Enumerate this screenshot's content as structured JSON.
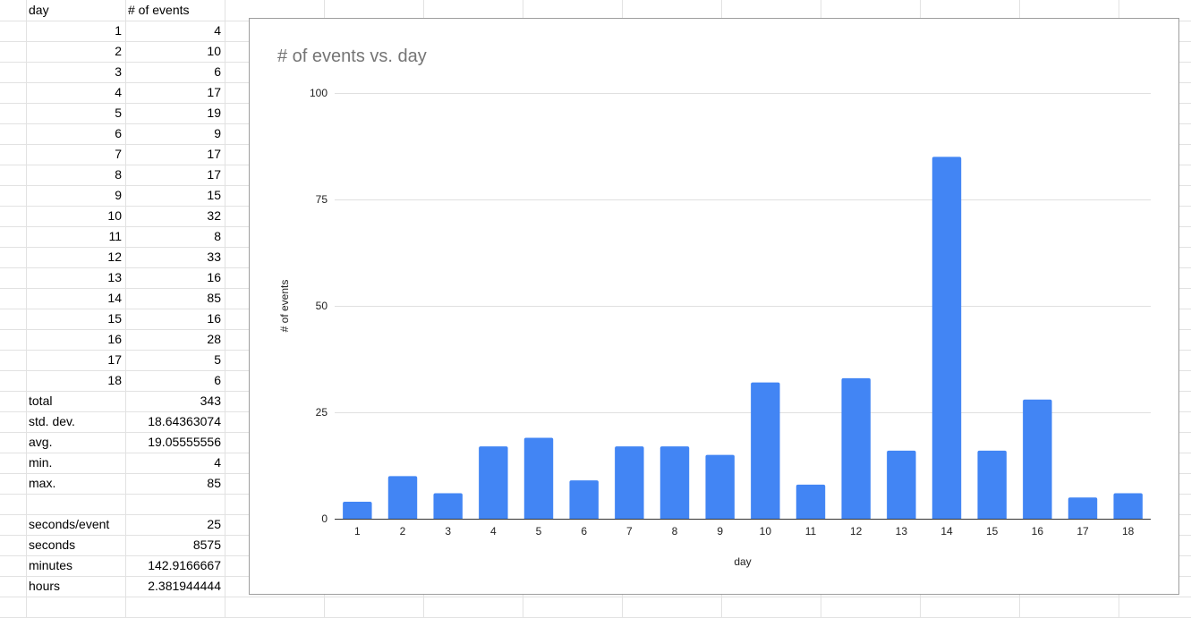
{
  "sheet": {
    "header": {
      "col_a": "day",
      "col_b": "# of events"
    },
    "rows": [
      {
        "day": "1",
        "events": "4"
      },
      {
        "day": "2",
        "events": "10"
      },
      {
        "day": "3",
        "events": "6"
      },
      {
        "day": "4",
        "events": "17"
      },
      {
        "day": "5",
        "events": "19"
      },
      {
        "day": "6",
        "events": "9"
      },
      {
        "day": "7",
        "events": "17"
      },
      {
        "day": "8",
        "events": "17"
      },
      {
        "day": "9",
        "events": "15"
      },
      {
        "day": "10",
        "events": "32"
      },
      {
        "day": "11",
        "events": "8"
      },
      {
        "day": "12",
        "events": "33"
      },
      {
        "day": "13",
        "events": "16"
      },
      {
        "day": "14",
        "events": "85"
      },
      {
        "day": "15",
        "events": "16"
      },
      {
        "day": "16",
        "events": "28"
      },
      {
        "day": "17",
        "events": "5"
      },
      {
        "day": "18",
        "events": "6"
      }
    ],
    "stats": [
      {
        "label": "total",
        "value": "343"
      },
      {
        "label": "std. dev.",
        "value": "18.64363074"
      },
      {
        "label": "avg.",
        "value": "19.05555556"
      },
      {
        "label": "min.",
        "value": "4"
      },
      {
        "label": "max.",
        "value": "85"
      }
    ],
    "time": [
      {
        "label": "seconds/event",
        "value": "25"
      },
      {
        "label": "seconds",
        "value": "8575"
      },
      {
        "label": "minutes",
        "value": "142.9166667"
      },
      {
        "label": "hours",
        "value": "2.381944444"
      }
    ]
  },
  "chart_data": {
    "type": "bar",
    "title": "# of events vs. day",
    "xlabel": "day",
    "ylabel": "# of events",
    "categories": [
      "1",
      "2",
      "3",
      "4",
      "5",
      "6",
      "7",
      "8",
      "9",
      "10",
      "11",
      "12",
      "13",
      "14",
      "15",
      "16",
      "17",
      "18"
    ],
    "values": [
      4,
      10,
      6,
      17,
      19,
      9,
      17,
      17,
      15,
      32,
      8,
      33,
      16,
      85,
      16,
      28,
      5,
      6
    ],
    "ylim": [
      0,
      100
    ],
    "yticks": [
      "0",
      "25",
      "50",
      "75",
      "100"
    ],
    "grid": true,
    "legend": "none",
    "bar_color": "#4285f4",
    "gridline_color": "#e0e0e0",
    "baseline_color": "#333333"
  }
}
